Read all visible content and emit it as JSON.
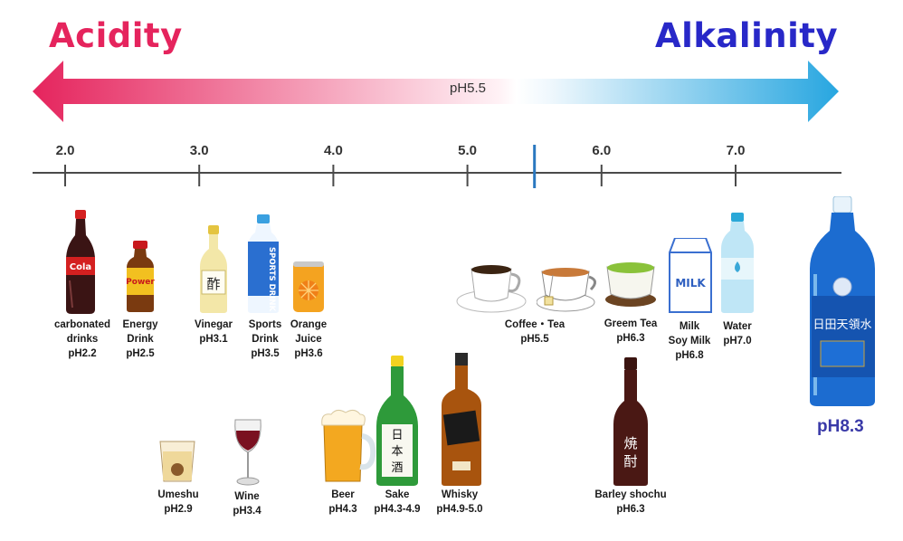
{
  "header": {
    "acidity": "Acidity",
    "alkalinity": "Alkalinity",
    "arrow_mid": "pH5.5"
  },
  "scale": {
    "ticks": [
      {
        "label": "2.0",
        "value": 2.0
      },
      {
        "label": "3.0",
        "value": 3.0
      },
      {
        "label": "4.0",
        "value": 4.0
      },
      {
        "label": "5.0",
        "value": 5.0
      },
      {
        "label": "6.0",
        "value": 6.0
      },
      {
        "label": "7.0",
        "value": 7.0
      }
    ],
    "marker_value": 5.5
  },
  "items": {
    "cola": {
      "name": "carbonated\ndrinks",
      "ph": "pH2.2"
    },
    "energy": {
      "name": "Energy\nDrink",
      "ph": "pH2.5"
    },
    "vinegar": {
      "name": "Vinegar",
      "ph": "pH3.1"
    },
    "sports": {
      "name": "Sports\nDrink",
      "ph": "pH3.5"
    },
    "orange": {
      "name": "Orange\nJuice",
      "ph": "pH3.6"
    },
    "coffee": {
      "name": "Coffee・Tea",
      "ph": "pH5.5"
    },
    "green": {
      "name": "Greem Tea",
      "ph": "pH6.3"
    },
    "milk": {
      "name": "Milk\nSoy Milk",
      "ph": "pH6.8"
    },
    "water": {
      "name": "Water",
      "ph": "pH7.0"
    },
    "umeshu": {
      "name": "Umeshu",
      "ph": "pH2.9"
    },
    "wine": {
      "name": "Wine",
      "ph": "pH3.4"
    },
    "beer": {
      "name": "Beer",
      "ph": "pH4.3"
    },
    "sake": {
      "name": "Sake",
      "ph": "pH4.3-4.9"
    },
    "whisky": {
      "name": "Whisky",
      "ph": "pH4.9-5.0"
    },
    "shochu": {
      "name": "Barley shochu",
      "ph": "pH6.3"
    },
    "hita": {
      "ph": "pH8.3"
    }
  },
  "product_text": {
    "cola_logo": "Cola",
    "energy_logo": "Power",
    "vinegar_kanji": "酢",
    "sports_logo": "SPORTS DRINK",
    "milk_logo": "MILK",
    "sake_kanji": "日本酒",
    "shochu_kanji": "焼酎",
    "hita_label": "日田天領水"
  },
  "colors": {
    "acid": "#e5245d",
    "alkali": "#2828c8",
    "arrow_right": "#27a6e0"
  }
}
